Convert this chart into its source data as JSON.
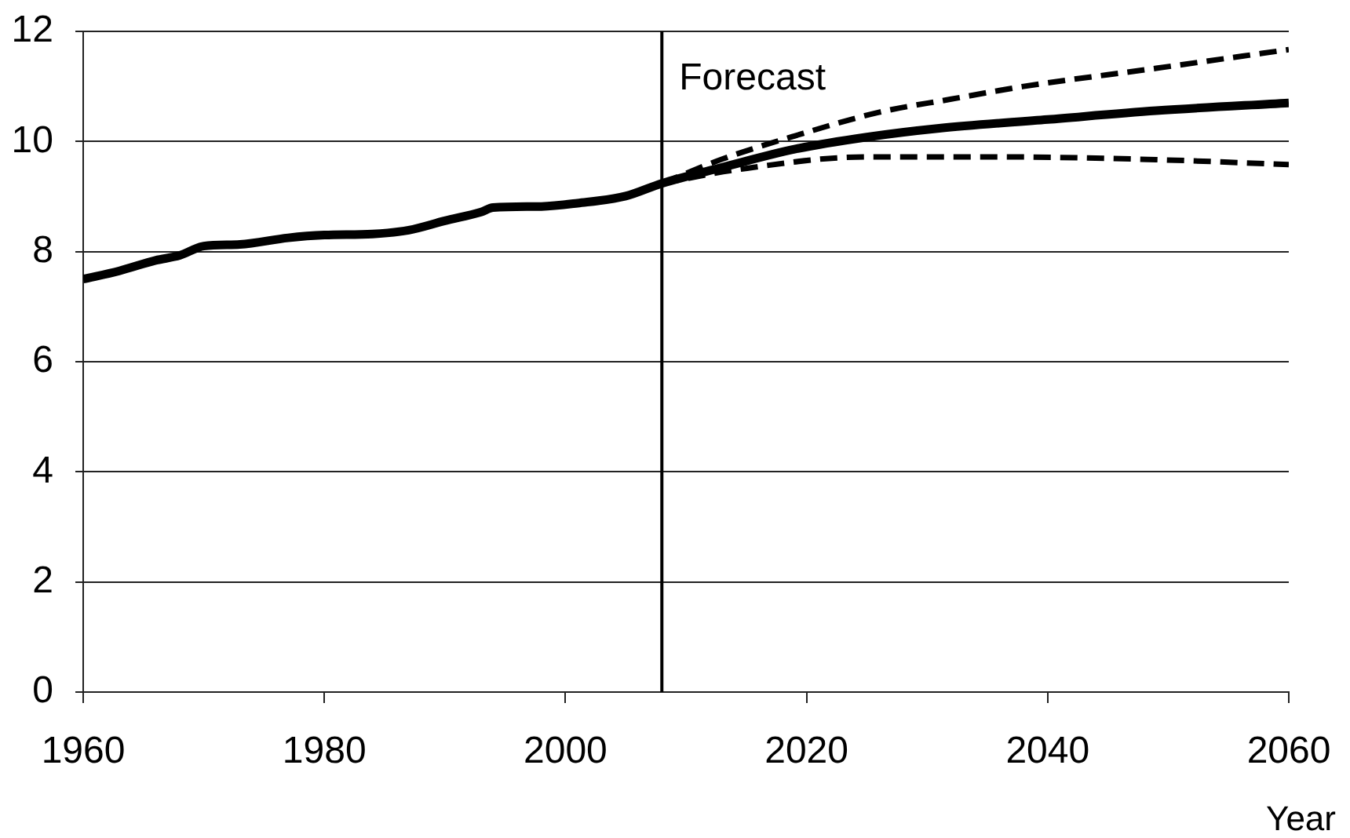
{
  "chart_data": {
    "type": "line",
    "xlabel": "Year",
    "xlim": [
      1960,
      2060
    ],
    "xticks": [
      1960,
      1980,
      2000,
      2020,
      2040,
      2060
    ],
    "ylim": [
      0,
      12
    ],
    "yticks": [
      0,
      2,
      4,
      6,
      8,
      10,
      12
    ],
    "grid": "y",
    "legend": false,
    "marker": "none",
    "ref_lines": [
      {
        "axis": "x",
        "value": 2008,
        "label": "Forecast",
        "color": "#000000"
      }
    ],
    "series": [
      {
        "color": "#000000",
        "line_style": "solid",
        "x": [
          1960,
          1963,
          1966,
          1968,
          1970,
          1973,
          1977,
          1980,
          1984,
          1987,
          1990,
          1993,
          1994,
          1998,
          2001,
          2005,
          2008,
          2013,
          2019,
          2025,
          2031,
          2040,
          2049,
          2060
        ],
        "values": [
          7.5,
          7.65,
          7.84,
          7.93,
          8.1,
          8.13,
          8.25,
          8.3,
          8.32,
          8.39,
          8.56,
          8.72,
          8.8,
          8.82,
          8.88,
          9.01,
          9.24,
          9.53,
          9.86,
          10.08,
          10.24,
          10.4,
          10.56,
          10.7
        ]
      },
      {
        "color": "#000000",
        "line_style": "dashed",
        "x": [
          2008,
          2013,
          2019,
          2026,
          2032,
          2038,
          2049,
          2060
        ],
        "values": [
          9.24,
          9.68,
          10.1,
          10.53,
          10.77,
          11.0,
          11.33,
          11.67
        ]
      },
      {
        "color": "#000000",
        "line_style": "dashed",
        "x": [
          2008,
          2014,
          2025,
          2036,
          2049,
          2060
        ],
        "values": [
          9.24,
          9.48,
          9.72,
          9.72,
          9.67,
          9.58
        ]
      }
    ]
  }
}
